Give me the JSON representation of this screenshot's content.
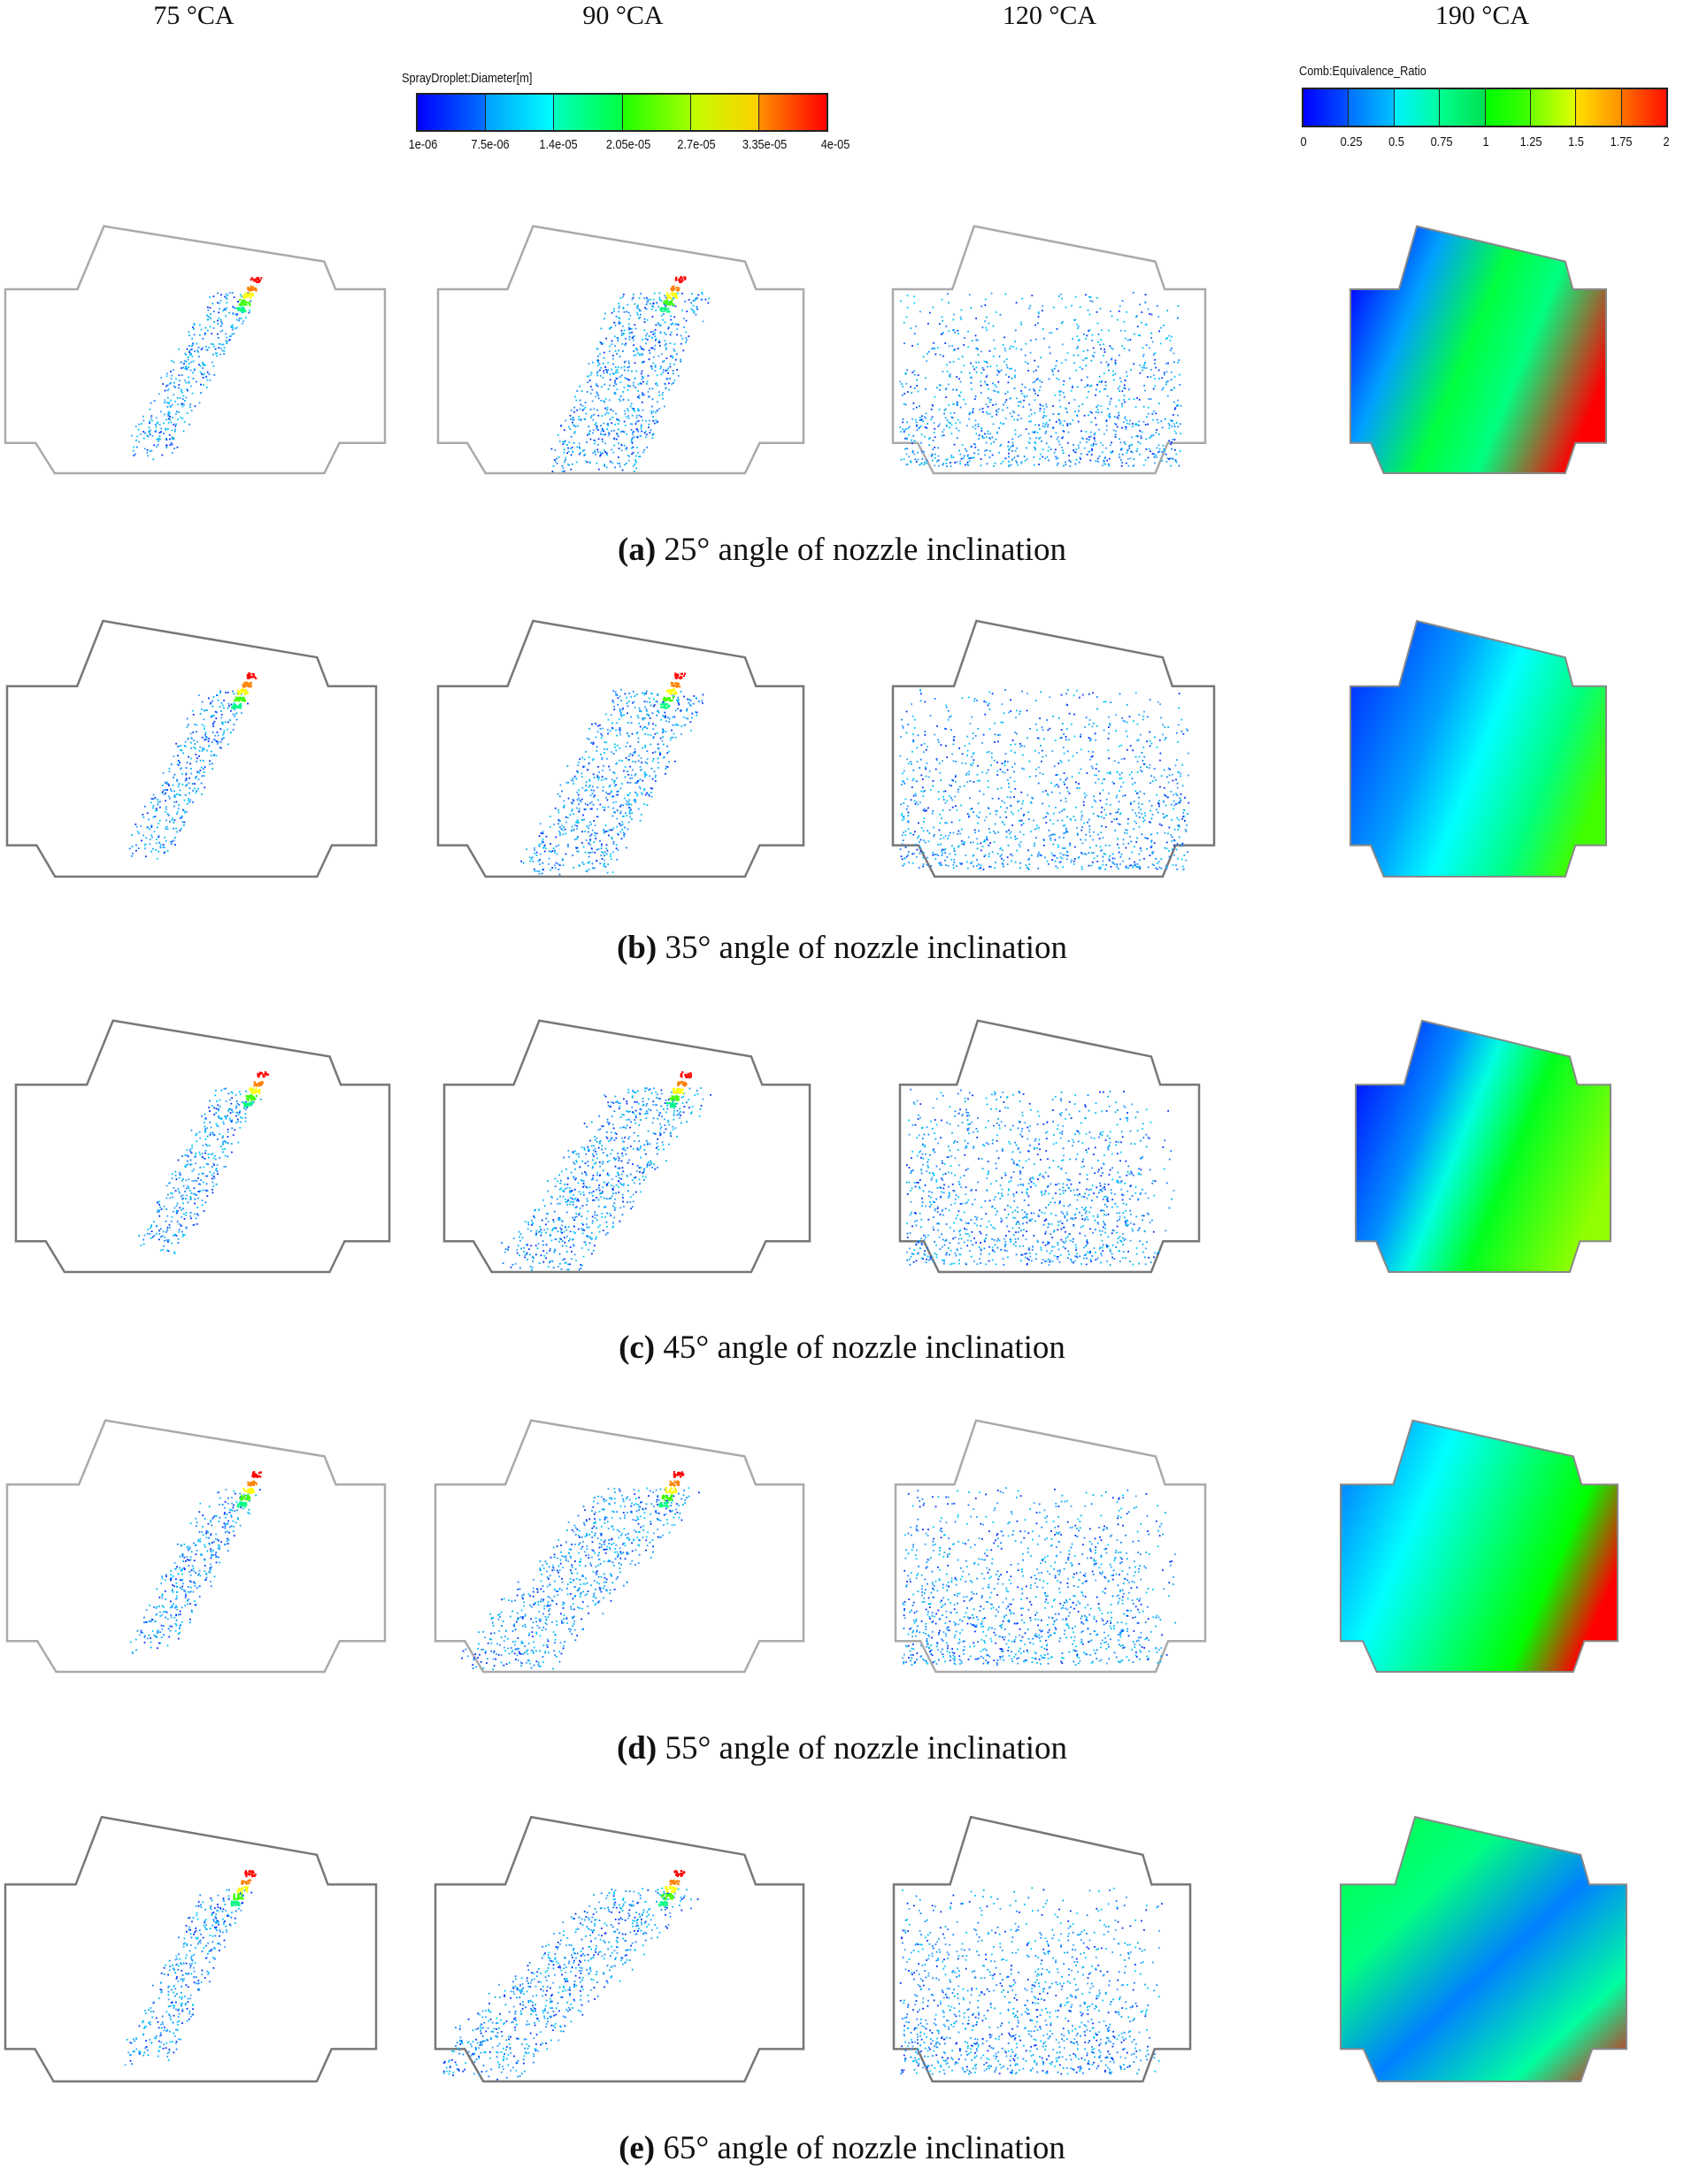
{
  "figure": {
    "column_headers": [
      "75 °CA",
      "90 °CA",
      "120 °CA",
      "190 °CA"
    ],
    "legends": {
      "diameter": {
        "title": "SprayDroplet:Diameter[m]",
        "ticks": [
          "1e-06",
          "7.5e-06",
          "1.4e-05",
          "2.05e-05",
          "2.7e-05",
          "3.35e-05",
          "4e-05"
        ],
        "colors": [
          "#0000ff",
          "#00a8ff",
          "#00ffff",
          "#00ff80",
          "#00ff00",
          "#80ff00",
          "#ffff00",
          "#ff8000",
          "#ff0000"
        ]
      },
      "equivalence": {
        "title": "Comb:Equivalence_Ratio",
        "ticks": [
          "0",
          "0.25",
          "0.5",
          "0.75",
          "1",
          "1.25",
          "1.5",
          "1.75",
          "2"
        ],
        "colors": [
          "#0000ff",
          "#0080ff",
          "#00ffff",
          "#00ff80",
          "#00ff00",
          "#80ff00",
          "#ffff00",
          "#ff8000",
          "#ff0000"
        ]
      }
    },
    "rows": [
      {
        "label": "(a)",
        "text": "25° angle of nozzle inclination",
        "angle": 25
      },
      {
        "label": "(b)",
        "text": "35° angle of nozzle inclination",
        "angle": 35
      },
      {
        "label": "(c)",
        "text": "45° angle of nozzle inclination",
        "angle": 45
      },
      {
        "label": "(d)",
        "text": "55° angle of nozzle inclination",
        "angle": 55
      },
      {
        "label": "(e)",
        "text": "65° angle of nozzle inclination",
        "angle": 65
      }
    ]
  }
}
